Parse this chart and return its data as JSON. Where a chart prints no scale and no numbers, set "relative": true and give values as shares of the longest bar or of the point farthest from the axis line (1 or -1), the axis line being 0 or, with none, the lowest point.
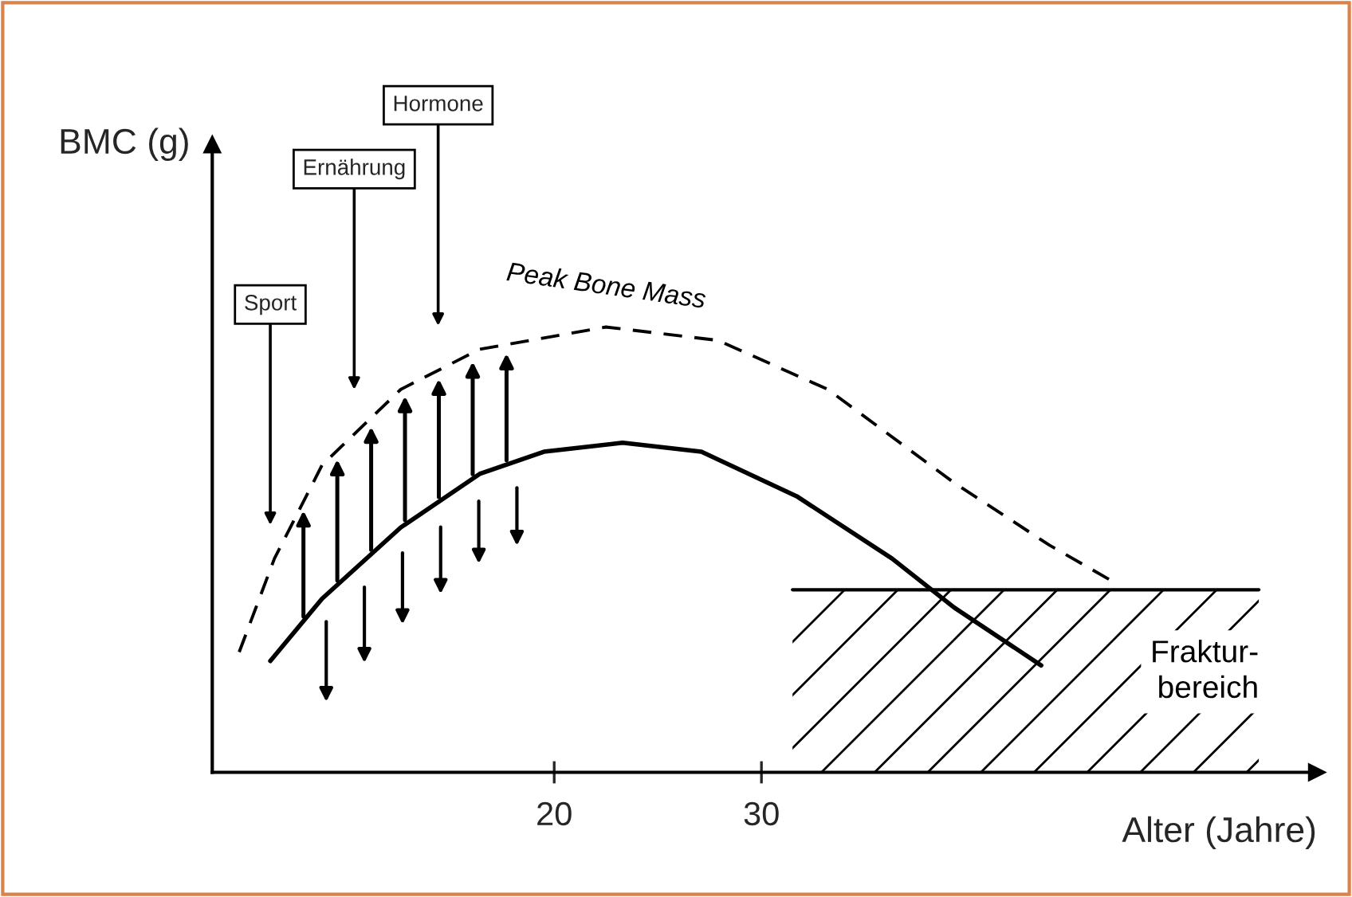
{
  "chart_data": {
    "type": "line",
    "relative": true,
    "xlabel": "Alter (Jahre)",
    "ylabel": "BMC (g)",
    "xlim": [
      3.5,
      56.8
    ],
    "xticks": [
      20,
      30
    ],
    "grid": false,
    "legend": false,
    "marker": "none",
    "series": [
      {
        "name": "Peak Bone Mass",
        "color": "#000000",
        "line_style": "dashed",
        "x": [
          4.8,
          6.5,
          8.8,
          12.6,
          16.4,
          22.5,
          27.9,
          33.2,
          39.3,
          43.9,
          46.9
        ],
        "values": [
          0.27,
          0.48,
          0.69,
          0.86,
          0.95,
          1.0,
          0.97,
          0.86,
          0.65,
          0.51,
          0.43
        ]
      },
      {
        "color": "#000000",
        "line_style": "solid",
        "x": [
          6.3,
          8.8,
          12.6,
          16.4,
          19.5,
          23.3,
          27.1,
          31.7,
          36.3,
          39.3,
          43.5
        ],
        "values": [
          0.25,
          0.39,
          0.55,
          0.67,
          0.72,
          0.74,
          0.72,
          0.62,
          0.48,
          0.37,
          0.24
        ]
      },
      {
        "type": "area",
        "name": "Fraktur-\nbereich",
        "color": "#000000",
        "x": [
          31.5,
          54.0
        ],
        "values": [
          0.41,
          0.41
        ]
      }
    ],
    "annotations": [
      "Sport",
      "Ernährung",
      "Hormone"
    ]
  }
}
